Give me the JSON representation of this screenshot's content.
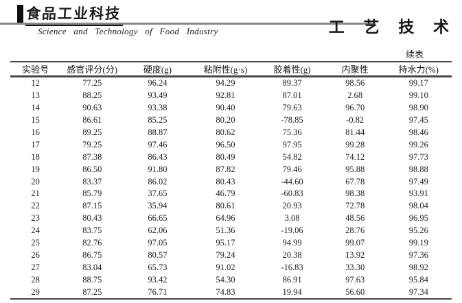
{
  "header": {
    "logo_cn": "食品工业科技",
    "logo_en": "Science  and  Technology  of  Food  Industry",
    "section_title": "工 艺 技 术"
  },
  "table": {
    "continued_label": "续表",
    "columns": [
      "实验号",
      "感官评分(分)",
      "硬度(g)",
      "粘附性(g·s)",
      "胶着性(g)",
      "内聚性",
      "持水力(%)"
    ],
    "rows": [
      [
        "12",
        "77.25",
        "96.24",
        "94.29",
        "89.37",
        "98.56",
        "99.17"
      ],
      [
        "13",
        "88.25",
        "93.49",
        "92.81",
        "87.01",
        "2.68",
        "99.10"
      ],
      [
        "14",
        "90.63",
        "93.38",
        "90.40",
        "79.63",
        "96.70",
        "98.90"
      ],
      [
        "15",
        "86.61",
        "85.25",
        "80.20",
        "-78.85",
        "-0.82",
        "97.45"
      ],
      [
        "16",
        "89.25",
        "88.87",
        "80.62",
        "75.36",
        "81.44",
        "98.46"
      ],
      [
        "17",
        "79.25",
        "97.46",
        "96.50",
        "97.95",
        "99.28",
        "99.26"
      ],
      [
        "18",
        "87.38",
        "86.43",
        "80.49",
        "54.82",
        "74.12",
        "97.73"
      ],
      [
        "19",
        "86.50",
        "91.80",
        "87.82",
        "79.46",
        "95.88",
        "98.88"
      ],
      [
        "20",
        "83.37",
        "86.02",
        "80.43",
        "-44.60",
        "67.78",
        "97.49"
      ],
      [
        "21",
        "85.79",
        "37.65",
        "46.79",
        "-60.83",
        "98.38",
        "93.91"
      ],
      [
        "22",
        "87.15",
        "35.94",
        "80.61",
        "20.93",
        "72.78",
        "98.04"
      ],
      [
        "23",
        "80.43",
        "66.65",
        "64.96",
        "3.08",
        "48.56",
        "96.95"
      ],
      [
        "24",
        "83.75",
        "62.06",
        "51.36",
        "-19.06",
        "28.76",
        "95.26"
      ],
      [
        "25",
        "82.76",
        "97.05",
        "95.17",
        "94.99",
        "99.07",
        "99.19"
      ],
      [
        "26",
        "86.75",
        "80.57",
        "79.24",
        "20.38",
        "13.92",
        "97.36"
      ],
      [
        "27",
        "83.04",
        "65.73",
        "91.02",
        "-16.83",
        "33.30",
        "98.92"
      ],
      [
        "28",
        "88.75",
        "93.42",
        "54.30",
        "86.91",
        "97.63",
        "95.84"
      ],
      [
        "29",
        "87.25",
        "76.71",
        "74.83",
        "19.94",
        "56.60",
        "97.34"
      ]
    ]
  },
  "colors": {
    "ink": "#1c1c1c",
    "rule_gray": "#8a8a8a",
    "table_rule": "#474747"
  }
}
